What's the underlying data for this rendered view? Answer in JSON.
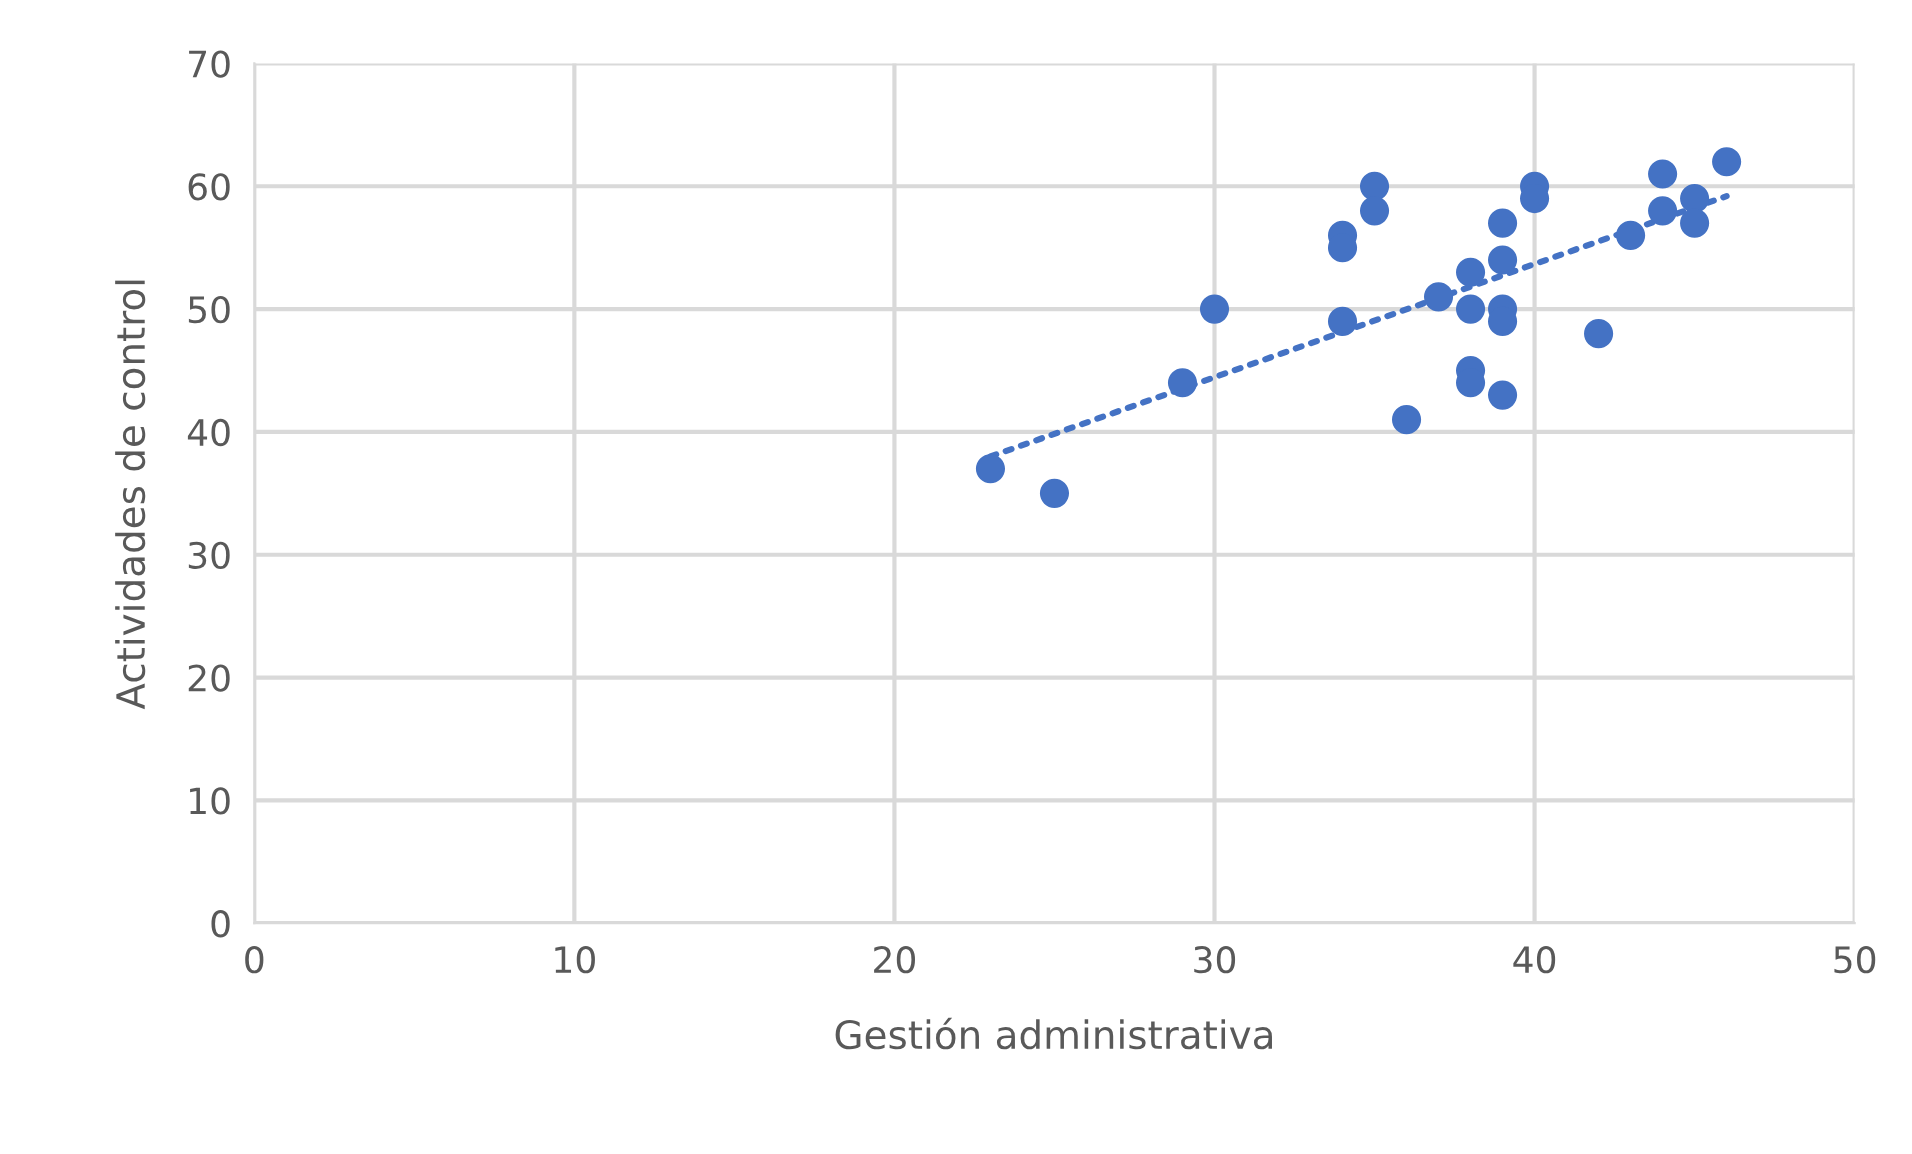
{
  "chart_data": {
    "type": "scatter",
    "xlabel": "Gestión administrativa",
    "ylabel": "Actividades de control",
    "xlim": [
      0,
      50
    ],
    "xticks": [
      0,
      10,
      20,
      30,
      40,
      50
    ],
    "ylim": [
      0,
      70
    ],
    "yticks": [
      0,
      10,
      20,
      30,
      40,
      50,
      60,
      70
    ],
    "grid": true,
    "legend": false,
    "marker": "circle",
    "series": [
      {
        "color": "#4472c4",
        "x": [
          23,
          25,
          29,
          30,
          34,
          34,
          34,
          35,
          35,
          36,
          37,
          38,
          38,
          38,
          38,
          39,
          39,
          39,
          39,
          39,
          40,
          40,
          42,
          43,
          44,
          44,
          45,
          45,
          46
        ],
        "values": [
          37,
          35,
          44,
          50,
          56,
          55,
          49,
          60,
          58,
          41,
          51,
          53,
          50,
          45,
          44,
          57,
          54,
          50,
          49,
          43,
          60,
          59,
          48,
          56,
          61,
          58,
          59,
          57,
          62
        ]
      },
      {
        "type": "line",
        "color": "#4472c4",
        "line_style": "dotted",
        "marker": "none",
        "x": [
          23,
          46
        ],
        "values": [
          38,
          59.2
        ]
      }
    ]
  }
}
